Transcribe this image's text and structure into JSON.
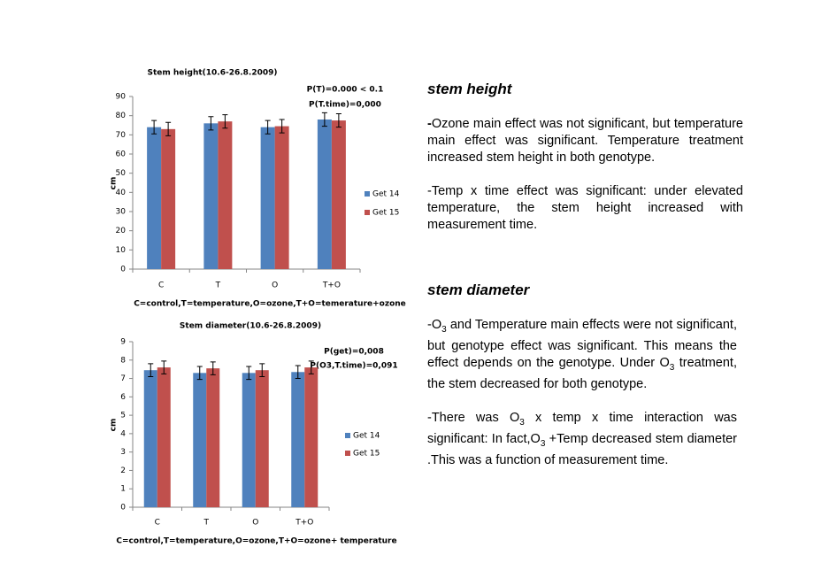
{
  "chart_data": [
    {
      "type": "bar",
      "title": "Stem height(10.6-26.8.2009)",
      "ylabel": "cm",
      "xlabel": "C=control,T=temperature,O=ozone,T+O=temerature+ozone",
      "annotations": [
        "P(T)=0.000 < 0.1",
        "P(T.time)=0,000"
      ],
      "categories": [
        "C",
        "T",
        "O",
        "T+O"
      ],
      "series": [
        {
          "name": "Get 14",
          "color": "#4f81bd",
          "values": [
            74,
            76,
            74,
            78
          ],
          "errors": [
            3.5,
            3.5,
            3.5,
            3.5
          ]
        },
        {
          "name": "Get 15",
          "color": "#c0504d",
          "values": [
            73,
            77,
            74.5,
            77.5
          ],
          "errors": [
            3.5,
            3.5,
            3.5,
            3.5
          ]
        }
      ],
      "ylim": [
        0,
        90
      ],
      "yticks": [
        0,
        10,
        20,
        30,
        40,
        50,
        60,
        70,
        80,
        90
      ],
      "legend": "right"
    },
    {
      "type": "bar",
      "title": "Stem diameter(10.6-26.8.2009)",
      "ylabel": "cm",
      "xlabel": "C=control,T=temperature,O=ozone,T+O=ozone+ temperature",
      "annotations": [
        "P(get)=0,008",
        "P(O3,T.time)=0,091"
      ],
      "categories": [
        "C",
        "T",
        "O",
        "T+O"
      ],
      "series": [
        {
          "name": "Get 14",
          "color": "#4f81bd",
          "values": [
            7.45,
            7.3,
            7.3,
            7.35
          ],
          "errors": [
            0.35,
            0.35,
            0.35,
            0.35
          ]
        },
        {
          "name": "Get 15",
          "color": "#c0504d",
          "values": [
            7.6,
            7.55,
            7.45,
            7.6
          ],
          "errors": [
            0.35,
            0.35,
            0.35,
            0.35
          ]
        }
      ],
      "ylim": [
        0,
        9
      ],
      "yticks": [
        0,
        1,
        2,
        3,
        4,
        5,
        6,
        7,
        8,
        9
      ],
      "legend": "right"
    }
  ],
  "sections": [
    {
      "heading": "stem height",
      "paragraphs": [
        [
          {
            "bold": "-"
          },
          {
            "text": "Ozone main effect was not significant, but temperature main effect was significant. Temperature treatment increased stem height in both genotype."
          }
        ],
        [
          {
            "text": "-Temp x time effect was significant: under elevated temperature, the stem height increased with measurement time."
          }
        ]
      ]
    },
    {
      "heading": "stem diameter",
      "paragraphs": [
        [
          {
            "text": "-O"
          },
          {
            "sub": "3"
          },
          {
            "text": " and Temperature main effects were not significant, but genotype effect was significant. This means the effect depends on the genotype. Under O"
          },
          {
            "sub": "3"
          },
          {
            "text": " treatment, the stem decreased for both genotype."
          }
        ],
        [
          {
            "text": "-There was O"
          },
          {
            "sub": "3"
          },
          {
            "text": " x temp x time interaction was significant: In fact,O"
          },
          {
            "sub": "3"
          },
          {
            "text": " +Temp  decreased stem diameter .This was a  function of measurement time."
          }
        ]
      ]
    }
  ]
}
